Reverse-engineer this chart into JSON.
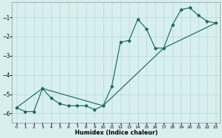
{
  "title": "",
  "xlabel": "Humidex (Indice chaleur)",
  "line1_x": [
    0,
    1,
    2,
    3,
    4,
    5,
    6,
    7,
    8,
    9,
    10,
    11,
    12,
    13,
    14,
    15,
    16,
    17,
    18,
    19,
    20,
    21,
    22,
    23
  ],
  "line1_y": [
    -5.7,
    -5.9,
    -5.9,
    -4.7,
    -5.2,
    -5.5,
    -5.6,
    -5.6,
    -5.6,
    -5.8,
    -5.6,
    -4.6,
    -2.3,
    -2.2,
    -1.1,
    -1.6,
    -2.6,
    -2.6,
    -1.4,
    -0.6,
    -0.5,
    -0.9,
    -1.2,
    -1.3
  ],
  "line2_x": [
    0,
    3,
    10,
    17,
    23
  ],
  "line2_y": [
    -5.7,
    -4.7,
    -5.6,
    -2.6,
    -1.3
  ],
  "line_color": "#1a6b5a",
  "bg_color": "#d8eff0",
  "grid_color": "#b8d8d8",
  "xlim": [
    -0.5,
    23.5
  ],
  "ylim": [
    -6.5,
    -0.2
  ],
  "yticks": [
    -6,
    -5,
    -4,
    -3,
    -2,
    -1
  ],
  "xticks": [
    0,
    1,
    2,
    3,
    4,
    5,
    6,
    7,
    8,
    9,
    10,
    11,
    12,
    13,
    14,
    15,
    16,
    17,
    18,
    19,
    20,
    21,
    22,
    23
  ]
}
